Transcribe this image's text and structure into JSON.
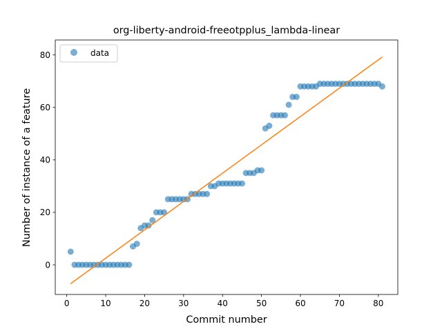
{
  "chart_data": {
    "type": "scatter",
    "title": "org-liberty-android-freeotpplus_lambda-linear",
    "xlabel": "Commit number",
    "ylabel": "Number of instance of a feature",
    "xlim": [
      -2.95,
      85.0
    ],
    "ylim": [
      -11.3,
      85.7
    ],
    "xticks": [
      0,
      10,
      20,
      30,
      40,
      50,
      60,
      70,
      80
    ],
    "yticks": [
      0,
      20,
      40,
      60,
      80
    ],
    "grid": false,
    "legend": {
      "position": "upper-left",
      "entries": [
        "data"
      ]
    },
    "series": [
      {
        "name": "data",
        "kind": "scatter",
        "color": "#1f77b4",
        "x": [
          1,
          2,
          3,
          4,
          5,
          6,
          7,
          8,
          9,
          10,
          11,
          12,
          13,
          14,
          15,
          16,
          17,
          18,
          19,
          20,
          21,
          22,
          23,
          24,
          25,
          26,
          27,
          28,
          29,
          30,
          31,
          32,
          33,
          34,
          35,
          36,
          37,
          38,
          39,
          40,
          41,
          42,
          43,
          44,
          45,
          46,
          47,
          48,
          49,
          50,
          51,
          52,
          53,
          54,
          55,
          56,
          57,
          58,
          59,
          60,
          61,
          62,
          63,
          64,
          65,
          66,
          67,
          68,
          69,
          70,
          71,
          72,
          73,
          74,
          75,
          76,
          77,
          78,
          79,
          80,
          81
        ],
        "y": [
          5,
          0,
          0,
          0,
          0,
          0,
          0,
          0,
          0,
          0,
          0,
          0,
          0,
          0,
          0,
          0,
          7,
          8,
          14,
          15,
          15,
          17,
          20,
          20,
          20,
          25,
          25,
          25,
          25,
          25,
          25,
          27,
          27,
          27,
          27,
          27,
          30,
          30,
          31,
          31,
          31,
          31,
          31,
          31,
          31,
          35,
          35,
          35,
          36,
          36,
          52,
          53,
          57,
          57,
          57,
          57,
          61,
          64,
          64,
          68,
          68,
          68,
          68,
          68,
          69,
          69,
          69,
          69,
          69,
          69,
          69,
          69,
          69,
          69,
          69,
          69,
          69,
          69,
          69,
          69,
          68
        ]
      },
      {
        "kind": "line",
        "color": "#ff7f0e",
        "x": [
          1,
          81
        ],
        "y": [
          -7.2,
          79.2
        ]
      }
    ]
  }
}
